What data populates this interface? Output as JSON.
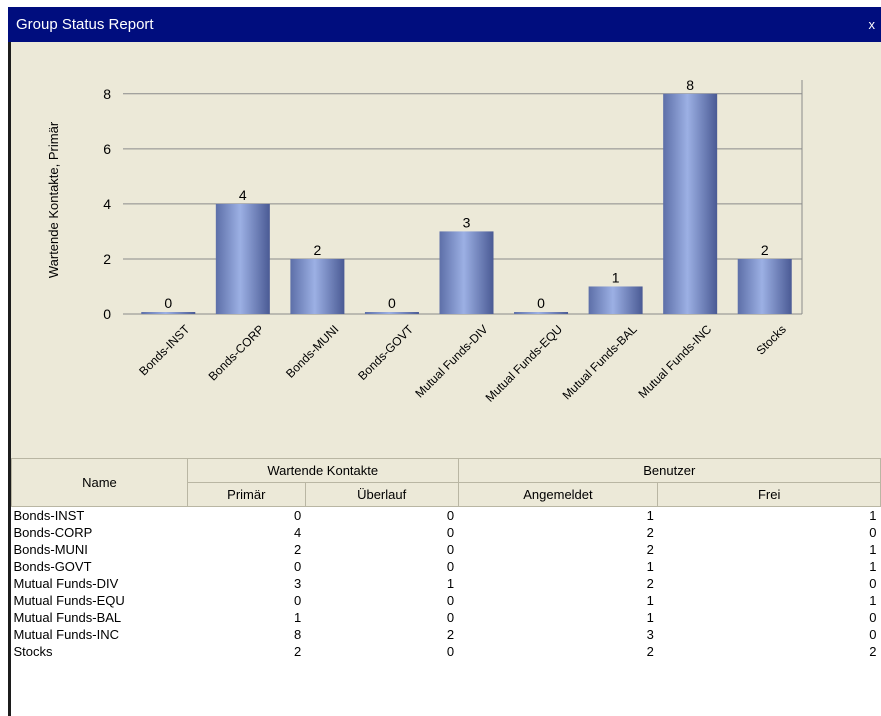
{
  "window": {
    "title": "Group Status Report",
    "close_label": "x"
  },
  "chart_data": {
    "type": "bar",
    "categories": [
      "Bonds-INST",
      "Bonds-CORP",
      "Bonds-MUNI",
      "Bonds-GOVT",
      "Mutual Funds-DIV",
      "Mutual Funds-EQU",
      "Mutual Funds-BAL",
      "Mutual Funds-INC",
      "Stocks"
    ],
    "values": [
      0,
      4,
      2,
      0,
      3,
      0,
      1,
      8,
      2
    ],
    "ylabel": "Wartende Kontakte, Primär",
    "ylim": [
      0,
      8.5
    ],
    "yticks": [
      "0",
      "2",
      "4",
      "6",
      "8"
    ],
    "grid": true,
    "bar_color": "#7f93c8"
  },
  "table": {
    "headers": {
      "name": "Name",
      "group_waiting": "Wartende Kontakte",
      "group_users": "Benutzer",
      "primary": "Primär",
      "overflow": "Überlauf",
      "logged_in": "Angemeldet",
      "free": "Frei"
    },
    "rows": [
      {
        "name": "Bonds-INST",
        "primary": "0",
        "overflow": "0",
        "logged_in": "1",
        "free": "1"
      },
      {
        "name": "Bonds-CORP",
        "primary": "4",
        "overflow": "0",
        "logged_in": "2",
        "free": "0"
      },
      {
        "name": "Bonds-MUNI",
        "primary": "2",
        "overflow": "0",
        "logged_in": "2",
        "free": "1"
      },
      {
        "name": "Bonds-GOVT",
        "primary": "0",
        "overflow": "0",
        "logged_in": "1",
        "free": "1"
      },
      {
        "name": "Mutual Funds-DIV",
        "primary": "3",
        "overflow": "1",
        "logged_in": "2",
        "free": "0"
      },
      {
        "name": "Mutual Funds-EQU",
        "primary": "0",
        "overflow": "0",
        "logged_in": "1",
        "free": "1"
      },
      {
        "name": "Mutual Funds-BAL",
        "primary": "1",
        "overflow": "0",
        "logged_in": "1",
        "free": "0"
      },
      {
        "name": "Mutual Funds-INC",
        "primary": "8",
        "overflow": "2",
        "logged_in": "3",
        "free": "0"
      },
      {
        "name": "Stocks",
        "primary": "2",
        "overflow": "0",
        "logged_in": "2",
        "free": "2"
      }
    ]
  }
}
